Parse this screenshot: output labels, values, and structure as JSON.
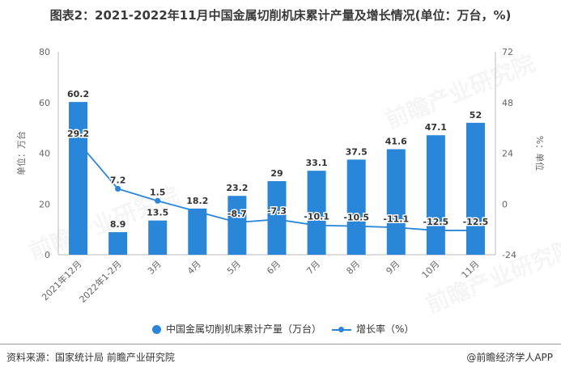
{
  "title": "图表2：2021-2022年11月中国金属切削机床累计产量及增长情况(单位：万台，%)",
  "watermark": "前瞻产业研究院",
  "source": "资料来源：国家统计局 前瞻产业研究院",
  "credit": "@前瞻经济学人APP",
  "colors": {
    "bar": "#2a86d8",
    "line": "#2a86d8",
    "axis": "#666666"
  },
  "chart_data": {
    "type": "bar",
    "categories": [
      "2021年12月",
      "2022年1-2月",
      "3月",
      "4月",
      "5月",
      "6月",
      "7月",
      "8月",
      "9月",
      "10月",
      "11月"
    ],
    "ylabel": "单位：万台",
    "y2label": "%：单位",
    "ylim": [
      0,
      80
    ],
    "y2lim": [
      -24,
      72
    ],
    "yticks": [
      0,
      20,
      40,
      60,
      80
    ],
    "y2ticks": [
      -24,
      0,
      24,
      48,
      72
    ],
    "legend_position": "bottom",
    "series": [
      {
        "name": "中国金属切削机床累计产量（万台）",
        "type": "bar",
        "axis": "left",
        "values": [
          60.2,
          8.9,
          13.5,
          18.2,
          23.2,
          29,
          33.1,
          37.5,
          41.6,
          47.1,
          52
        ],
        "labels": [
          "60.2",
          "8.9",
          "13.5",
          "18.2",
          "23.2",
          "29",
          "33.1",
          "37.5",
          "41.6",
          "47.1",
          "52"
        ]
      },
      {
        "name": "增长率（%）",
        "type": "line",
        "axis": "right",
        "values": [
          29.2,
          7.2,
          1.5,
          null,
          -8.7,
          -7.3,
          -10.1,
          -10.5,
          -11.1,
          -12.5,
          -12.5
        ],
        "labels": [
          "29.2",
          "7.2",
          "1.5",
          "",
          "-8.7",
          "-7.3",
          "-10.1",
          "-10.5",
          "-11.1",
          "-12.5",
          "-12.5"
        ]
      }
    ]
  }
}
